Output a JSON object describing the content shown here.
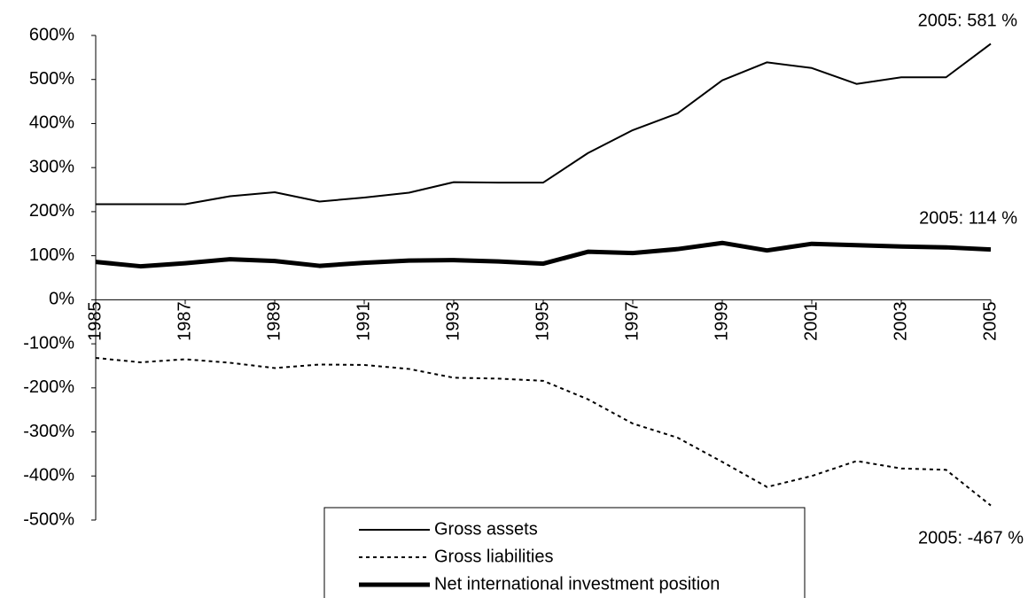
{
  "chart_data": {
    "type": "line",
    "x": [
      1985,
      1986,
      1987,
      1988,
      1989,
      1990,
      1991,
      1992,
      1993,
      1994,
      1995,
      1996,
      1997,
      1998,
      1999,
      2000,
      2001,
      2002,
      2003,
      2004,
      2005
    ],
    "xlim": [
      1985,
      2005
    ],
    "xticks": [
      1985,
      1987,
      1989,
      1991,
      1993,
      1995,
      1997,
      1999,
      2001,
      2003,
      2005
    ],
    "ylim": [
      -500,
      600
    ],
    "yticks": [
      {
        "value": 600,
        "label": "600%"
      },
      {
        "value": 500,
        "label": "500%"
      },
      {
        "value": 400,
        "label": "400%"
      },
      {
        "value": 300,
        "label": "300%"
      },
      {
        "value": 200,
        "label": "200%"
      },
      {
        "value": 100,
        "label": "100%"
      },
      {
        "value": 0,
        "label": "0%"
      },
      {
        "value": -100,
        "label": "-100%"
      },
      {
        "value": -200,
        "label": "-200%"
      },
      {
        "value": -300,
        "label": "-300%"
      },
      {
        "value": -400,
        "label": "-400%"
      },
      {
        "value": -500,
        "label": "-500%"
      }
    ],
    "series": [
      {
        "name": "Gross assets",
        "color": "#000000",
        "line_width": 2,
        "dashed": false,
        "values": [
          217,
          217,
          217,
          235,
          244,
          223,
          232,
          243,
          267,
          266,
          266,
          333,
          385,
          423,
          498,
          539,
          526,
          490,
          505,
          505,
          581
        ]
      },
      {
        "name": "Gross liabilities",
        "color": "#000000",
        "line_width": 2,
        "dashed": true,
        "values": [
          -132,
          -142,
          -135,
          -143,
          -155,
          -147,
          -148,
          -157,
          -177,
          -179,
          -184,
          -226,
          -281,
          -313,
          -368,
          -425,
          -400,
          -366,
          -383,
          -386,
          -467
        ]
      },
      {
        "name": "Net international investment position",
        "color": "#000000",
        "line_width": 5,
        "dashed": false,
        "values": [
          86,
          76,
          83,
          92,
          88,
          77,
          84,
          89,
          90,
          87,
          82,
          109,
          106,
          115,
          129,
          112,
          127,
          124,
          121,
          119,
          114
        ]
      }
    ],
    "annotations": [
      "2005: 581 %",
      "2005: 114 %",
      "2005: -467 %"
    ]
  }
}
